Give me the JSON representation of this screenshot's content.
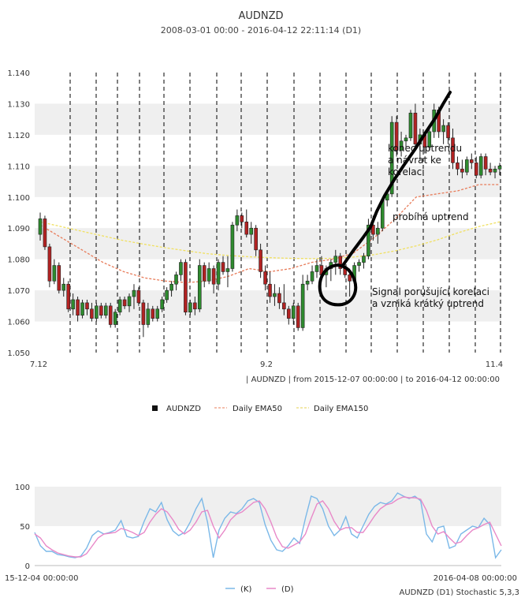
{
  "header": {
    "title": "AUDNZD",
    "subtitle": "2008-03-01 00:00 - 2016-04-12 22:11:14 (D1)"
  },
  "main_chart": {
    "info_line": "| AUDNZD | from 2015-12-07 00:00:00 | to 2016-04-12 00:00:00",
    "legend": [
      "AUDNZD",
      "Daily EMA50",
      "Daily EMA150"
    ],
    "annotations": [
      "konec uptrendu",
      "a návrat ke",
      "korelaci",
      "probíhá uptrend",
      "Signal porušující korelaci",
      "a vzniká krátký uptrend"
    ]
  },
  "stoch_chart": {
    "date_left": "15-12-04 00:00:00",
    "date_right": "2016-04-08 00:00:00",
    "legend": [
      "(K)",
      "(D)"
    ],
    "caption": "AUDNZD (D1) Stochastic 5,3,3"
  },
  "colors": {
    "bull": "#2e8b2e",
    "bear": "#b22222",
    "ema50": "#e87c5a",
    "ema150": "#f0e060",
    "k_line": "#7ab8e8",
    "d_line": "#e888c8"
  },
  "chart_data": [
    {
      "type": "candlestick",
      "title": "AUDNZD",
      "x_ticks": [
        "7.12",
        "9.2",
        "11.4"
      ],
      "ylim": [
        1.05,
        1.14
      ],
      "y_ticks": [
        1.05,
        1.06,
        1.07,
        1.08,
        1.09,
        1.1,
        1.11,
        1.12,
        1.13,
        1.14
      ],
      "candles": [
        {
          "o": 1.088,
          "h": 1.095,
          "l": 1.086,
          "c": 1.093
        },
        {
          "o": 1.093,
          "h": 1.094,
          "l": 1.083,
          "c": 1.084
        },
        {
          "o": 1.084,
          "h": 1.085,
          "l": 1.071,
          "c": 1.073
        },
        {
          "o": 1.073,
          "h": 1.08,
          "l": 1.072,
          "c": 1.078
        },
        {
          "o": 1.078,
          "h": 1.079,
          "l": 1.069,
          "c": 1.07
        },
        {
          "o": 1.07,
          "h": 1.074,
          "l": 1.068,
          "c": 1.072
        },
        {
          "o": 1.072,
          "h": 1.073,
          "l": 1.063,
          "c": 1.064
        },
        {
          "o": 1.064,
          "h": 1.069,
          "l": 1.062,
          "c": 1.067
        },
        {
          "o": 1.067,
          "h": 1.068,
          "l": 1.06,
          "c": 1.062
        },
        {
          "o": 1.062,
          "h": 1.067,
          "l": 1.061,
          "c": 1.066
        },
        {
          "o": 1.066,
          "h": 1.067,
          "l": 1.062,
          "c": 1.064
        },
        {
          "o": 1.064,
          "h": 1.066,
          "l": 1.06,
          "c": 1.061
        },
        {
          "o": 1.061,
          "h": 1.066,
          "l": 1.06,
          "c": 1.065
        },
        {
          "o": 1.065,
          "h": 1.066,
          "l": 1.061,
          "c": 1.062
        },
        {
          "o": 1.062,
          "h": 1.066,
          "l": 1.061,
          "c": 1.065
        },
        {
          "o": 1.065,
          "h": 1.066,
          "l": 1.058,
          "c": 1.059
        },
        {
          "o": 1.059,
          "h": 1.064,
          "l": 1.058,
          "c": 1.063
        },
        {
          "o": 1.063,
          "h": 1.068,
          "l": 1.062,
          "c": 1.067
        },
        {
          "o": 1.067,
          "h": 1.068,
          "l": 1.064,
          "c": 1.065
        },
        {
          "o": 1.065,
          "h": 1.069,
          "l": 1.063,
          "c": 1.068
        },
        {
          "o": 1.068,
          "h": 1.072,
          "l": 1.064,
          "c": 1.07
        },
        {
          "o": 1.07,
          "h": 1.071,
          "l": 1.065,
          "c": 1.066
        },
        {
          "o": 1.066,
          "h": 1.067,
          "l": 1.055,
          "c": 1.059
        },
        {
          "o": 1.059,
          "h": 1.066,
          "l": 1.058,
          "c": 1.064
        },
        {
          "o": 1.064,
          "h": 1.065,
          "l": 1.06,
          "c": 1.061
        },
        {
          "o": 1.061,
          "h": 1.065,
          "l": 1.06,
          "c": 1.064
        },
        {
          "o": 1.064,
          "h": 1.068,
          "l": 1.063,
          "c": 1.067
        },
        {
          "o": 1.067,
          "h": 1.071,
          "l": 1.066,
          "c": 1.07
        },
        {
          "o": 1.07,
          "h": 1.073,
          "l": 1.068,
          "c": 1.072
        },
        {
          "o": 1.072,
          "h": 1.076,
          "l": 1.07,
          "c": 1.075
        },
        {
          "o": 1.075,
          "h": 1.08,
          "l": 1.073,
          "c": 1.079
        },
        {
          "o": 1.079,
          "h": 1.08,
          "l": 1.062,
          "c": 1.063
        },
        {
          "o": 1.063,
          "h": 1.067,
          "l": 1.062,
          "c": 1.066
        },
        {
          "o": 1.066,
          "h": 1.068,
          "l": 1.062,
          "c": 1.064
        },
        {
          "o": 1.064,
          "h": 1.08,
          "l": 1.063,
          "c": 1.078
        },
        {
          "o": 1.078,
          "h": 1.079,
          "l": 1.071,
          "c": 1.073
        },
        {
          "o": 1.073,
          "h": 1.079,
          "l": 1.072,
          "c": 1.077
        },
        {
          "o": 1.077,
          "h": 1.078,
          "l": 1.069,
          "c": 1.072
        },
        {
          "o": 1.072,
          "h": 1.08,
          "l": 1.07,
          "c": 1.079
        },
        {
          "o": 1.079,
          "h": 1.081,
          "l": 1.075,
          "c": 1.076
        },
        {
          "o": 1.076,
          "h": 1.081,
          "l": 1.071,
          "c": 1.077
        },
        {
          "o": 1.077,
          "h": 1.092,
          "l": 1.076,
          "c": 1.091
        },
        {
          "o": 1.091,
          "h": 1.096,
          "l": 1.089,
          "c": 1.094
        },
        {
          "o": 1.094,
          "h": 1.095,
          "l": 1.09,
          "c": 1.092
        },
        {
          "o": 1.092,
          "h": 1.096,
          "l": 1.087,
          "c": 1.088
        },
        {
          "o": 1.088,
          "h": 1.092,
          "l": 1.085,
          "c": 1.09
        },
        {
          "o": 1.09,
          "h": 1.091,
          "l": 1.081,
          "c": 1.083
        },
        {
          "o": 1.083,
          "h": 1.085,
          "l": 1.074,
          "c": 1.076
        },
        {
          "o": 1.076,
          "h": 1.078,
          "l": 1.07,
          "c": 1.072
        },
        {
          "o": 1.072,
          "h": 1.076,
          "l": 1.066,
          "c": 1.068
        },
        {
          "o": 1.068,
          "h": 1.072,
          "l": 1.065,
          "c": 1.069
        },
        {
          "o": 1.069,
          "h": 1.071,
          "l": 1.064,
          "c": 1.066
        },
        {
          "o": 1.066,
          "h": 1.072,
          "l": 1.062,
          "c": 1.064
        },
        {
          "o": 1.064,
          "h": 1.065,
          "l": 1.059,
          "c": 1.061
        },
        {
          "o": 1.061,
          "h": 1.066,
          "l": 1.059,
          "c": 1.065
        },
        {
          "o": 1.065,
          "h": 1.066,
          "l": 1.057,
          "c": 1.058
        },
        {
          "o": 1.058,
          "h": 1.075,
          "l": 1.057,
          "c": 1.072
        },
        {
          "o": 1.072,
          "h": 1.075,
          "l": 1.07,
          "c": 1.073
        },
        {
          "o": 1.073,
          "h": 1.078,
          "l": 1.072,
          "c": 1.076
        },
        {
          "o": 1.076,
          "h": 1.08,
          "l": 1.074,
          "c": 1.078
        },
        {
          "o": 1.078,
          "h": 1.081,
          "l": 1.073,
          "c": 1.075
        },
        {
          "o": 1.075,
          "h": 1.078,
          "l": 1.071,
          "c": 1.077
        },
        {
          "o": 1.077,
          "h": 1.08,
          "l": 1.073,
          "c": 1.079
        },
        {
          "o": 1.079,
          "h": 1.083,
          "l": 1.075,
          "c": 1.081
        },
        {
          "o": 1.081,
          "h": 1.082,
          "l": 1.075,
          "c": 1.077
        },
        {
          "o": 1.077,
          "h": 1.078,
          "l": 1.074,
          "c": 1.075
        },
        {
          "o": 1.075,
          "h": 1.077,
          "l": 1.068,
          "c": 1.073
        },
        {
          "o": 1.073,
          "h": 1.079,
          "l": 1.072,
          "c": 1.078
        },
        {
          "o": 1.078,
          "h": 1.08,
          "l": 1.076,
          "c": 1.079
        },
        {
          "o": 1.079,
          "h": 1.082,
          "l": 1.077,
          "c": 1.081
        },
        {
          "o": 1.081,
          "h": 1.093,
          "l": 1.08,
          "c": 1.091
        },
        {
          "o": 1.091,
          "h": 1.094,
          "l": 1.086,
          "c": 1.088
        },
        {
          "o": 1.088,
          "h": 1.092,
          "l": 1.085,
          "c": 1.09
        },
        {
          "o": 1.09,
          "h": 1.1,
          "l": 1.089,
          "c": 1.099
        },
        {
          "o": 1.099,
          "h": 1.102,
          "l": 1.097,
          "c": 1.101
        },
        {
          "o": 1.101,
          "h": 1.126,
          "l": 1.1,
          "c": 1.124
        },
        {
          "o": 1.124,
          "h": 1.126,
          "l": 1.113,
          "c": 1.115
        },
        {
          "o": 1.115,
          "h": 1.121,
          "l": 1.113,
          "c": 1.118
        },
        {
          "o": 1.118,
          "h": 1.12,
          "l": 1.116,
          "c": 1.119
        },
        {
          "o": 1.119,
          "h": 1.128,
          "l": 1.118,
          "c": 1.127
        },
        {
          "o": 1.127,
          "h": 1.13,
          "l": 1.115,
          "c": 1.117
        },
        {
          "o": 1.117,
          "h": 1.122,
          "l": 1.112,
          "c": 1.12
        },
        {
          "o": 1.12,
          "h": 1.121,
          "l": 1.114,
          "c": 1.116
        },
        {
          "o": 1.116,
          "h": 1.122,
          "l": 1.115,
          "c": 1.121
        },
        {
          "o": 1.121,
          "h": 1.13,
          "l": 1.119,
          "c": 1.128
        },
        {
          "o": 1.128,
          "h": 1.129,
          "l": 1.119,
          "c": 1.121
        },
        {
          "o": 1.121,
          "h": 1.125,
          "l": 1.117,
          "c": 1.123
        },
        {
          "o": 1.123,
          "h": 1.124,
          "l": 1.117,
          "c": 1.119
        },
        {
          "o": 1.119,
          "h": 1.122,
          "l": 1.109,
          "c": 1.111
        },
        {
          "o": 1.111,
          "h": 1.113,
          "l": 1.107,
          "c": 1.109
        },
        {
          "o": 1.109,
          "h": 1.112,
          "l": 1.106,
          "c": 1.108
        },
        {
          "o": 1.108,
          "h": 1.113,
          "l": 1.107,
          "c": 1.112
        },
        {
          "o": 1.112,
          "h": 1.114,
          "l": 1.109,
          "c": 1.111
        },
        {
          "o": 1.111,
          "h": 1.113,
          "l": 1.106,
          "c": 1.107
        },
        {
          "o": 1.107,
          "h": 1.114,
          "l": 1.106,
          "c": 1.113
        },
        {
          "o": 1.113,
          "h": 1.114,
          "l": 1.107,
          "c": 1.109
        },
        {
          "o": 1.109,
          "h": 1.111,
          "l": 1.107,
          "c": 1.108
        },
        {
          "o": 1.108,
          "h": 1.11,
          "l": 1.106,
          "c": 1.109
        },
        {
          "o": 1.109,
          "h": 1.111,
          "l": 1.107,
          "c": 1.11
        }
      ],
      "ema50": [
        1.091,
        1.087,
        1.083,
        1.079,
        1.076,
        1.074,
        1.073,
        1.0725,
        1.073,
        1.0745,
        1.077,
        1.076,
        1.077,
        1.079,
        1.08,
        1.082,
        1.087,
        1.093,
        1.1,
        1.101,
        1.102,
        1.104,
        1.104
      ],
      "ema150": [
        1.092,
        1.0905,
        1.089,
        1.0875,
        1.086,
        1.0848,
        1.0837,
        1.0827,
        1.0818,
        1.0812,
        1.0808,
        1.0805,
        1.0803,
        1.0802,
        1.0803,
        1.0807,
        1.0815,
        1.0827,
        1.0843,
        1.0862,
        1.0885,
        1.0905,
        1.092
      ]
    },
    {
      "type": "line",
      "title": "AUDNZD (D1) Stochastic 5,3,3",
      "ylim": [
        0,
        100
      ],
      "y_ticks": [
        0,
        50,
        100
      ],
      "series": [
        {
          "name": "(K)",
          "values": [
            42,
            25,
            18,
            18,
            14,
            13,
            11,
            10,
            12,
            22,
            38,
            44,
            40,
            42,
            45,
            57,
            37,
            35,
            37,
            56,
            72,
            68,
            80,
            58,
            44,
            38,
            42,
            55,
            72,
            85,
            55,
            10,
            45,
            60,
            68,
            66,
            72,
            82,
            85,
            80,
            52,
            32,
            20,
            18,
            25,
            35,
            28,
            60,
            88,
            85,
            72,
            50,
            38,
            45,
            62,
            40,
            35,
            50,
            65,
            75,
            80,
            78,
            82,
            92,
            88,
            85,
            88,
            82,
            40,
            30,
            48,
            50,
            22,
            25,
            40,
            45,
            50,
            48,
            60,
            52,
            10,
            20
          ]
        },
        {
          "name": "(D)",
          "values": [
            40,
            35,
            25,
            20,
            16,
            14,
            12,
            11,
            11,
            15,
            25,
            35,
            40,
            41,
            42,
            47,
            45,
            42,
            38,
            42,
            55,
            65,
            72,
            68,
            58,
            46,
            40,
            45,
            55,
            68,
            70,
            50,
            35,
            45,
            58,
            65,
            68,
            74,
            80,
            82,
            72,
            55,
            36,
            24,
            22,
            26,
            30,
            40,
            60,
            78,
            82,
            72,
            56,
            45,
            48,
            48,
            42,
            42,
            52,
            63,
            72,
            77,
            79,
            84,
            87,
            86,
            86,
            84,
            70,
            50,
            40,
            43,
            35,
            28,
            30,
            38,
            45,
            48,
            52,
            55,
            40,
            25
          ]
        }
      ]
    }
  ]
}
